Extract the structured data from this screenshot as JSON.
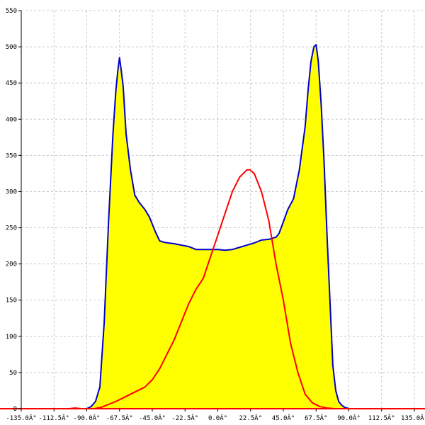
{
  "chart_data": {
    "type": "area",
    "title": "",
    "xlabel": "",
    "ylabel": "",
    "xlim": [
      -135,
      135
    ],
    "ylim": [
      0,
      550
    ],
    "grid": true,
    "x_ticks": [
      -135,
      -112.5,
      -90,
      -67.5,
      -45,
      -22.5,
      0,
      22.5,
      45,
      67.5,
      90,
      112.5,
      135
    ],
    "x_tick_labels": [
      "-135.0Â°",
      "-112.5Â°",
      "-90.0Â°",
      "-67.5Â°",
      "-45.0Â°",
      "-22.5Â°",
      "0.0Â°",
      "22.5Â°",
      "45.0Â°",
      "67.5Â°",
      "90.0Â°",
      "112.5Â°",
      "135.0Â°"
    ],
    "y_ticks": [
      0,
      50,
      100,
      150,
      200,
      250,
      300,
      350,
      400,
      450,
      500,
      550
    ],
    "y_tick_labels": [
      "0",
      "50",
      "100",
      "150",
      "200",
      "250",
      "300",
      "350",
      "400",
      "450",
      "500",
      "550"
    ],
    "series": [
      {
        "color": "#0000cc",
        "fill": "#ffff00",
        "x": [
          -135,
          -90,
          -87,
          -84,
          -81,
          -78,
          -75,
          -72,
          -70,
          -68.5,
          -67.5,
          -66.5,
          -65,
          -63,
          -60,
          -57,
          -54,
          -50,
          -47,
          -45,
          -43,
          -40,
          -37,
          -34,
          -30,
          -25,
          -20,
          -15,
          -10,
          -5,
          0,
          5,
          10,
          15,
          20,
          25,
          30,
          35,
          40,
          42,
          45,
          48,
          52,
          56,
          60,
          62,
          64,
          66,
          67.5,
          69,
          71,
          73,
          75,
          77,
          79,
          81,
          83,
          85,
          87,
          90,
          135
        ],
        "y": [
          0,
          0,
          3,
          10,
          30,
          120,
          260,
          380,
          440,
          470,
          485,
          470,
          445,
          380,
          330,
          295,
          285,
          275,
          265,
          255,
          245,
          232,
          230,
          229,
          228,
          226,
          224,
          220,
          220,
          220,
          220,
          219,
          220,
          223,
          226,
          229,
          233,
          234,
          237,
          242,
          258,
          275,
          290,
          330,
          390,
          440,
          480,
          500,
          503,
          480,
          420,
          340,
          240,
          150,
          60,
          25,
          10,
          5,
          2,
          0,
          0
        ]
      },
      {
        "color": "#ff0000",
        "fill": "none",
        "x": [
          -135,
          -102,
          -98,
          -94,
          -90,
          -85,
          -80,
          -75,
          -70,
          -65,
          -60,
          -55,
          -50,
          -45,
          -40,
          -35,
          -30,
          -25,
          -20,
          -15,
          -10,
          -5,
          0,
          5,
          10,
          15,
          20,
          22,
          25,
          30,
          35,
          40,
          45,
          50,
          55,
          60,
          65,
          70,
          75,
          80,
          85,
          90,
          135
        ],
        "y": [
          0,
          0,
          1,
          0,
          0,
          0,
          2,
          6,
          10,
          15,
          20,
          25,
          30,
          40,
          55,
          75,
          95,
          120,
          145,
          165,
          180,
          210,
          240,
          270,
          300,
          320,
          330,
          330,
          325,
          300,
          260,
          200,
          150,
          90,
          50,
          20,
          8,
          3,
          1,
          0,
          0,
          0,
          0
        ]
      }
    ]
  }
}
